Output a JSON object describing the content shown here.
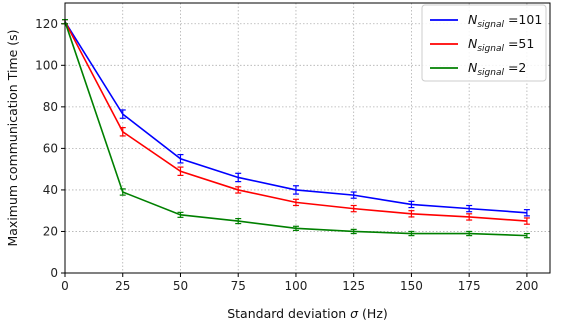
{
  "chart_data": {
    "type": "line",
    "xlabel_prefix": "Standard deviation ",
    "xlabel_symbol": "σ",
    "xlabel_suffix": " (Hz)",
    "ylabel": "Maximum communication Time (s)",
    "xlim": [
      0,
      210
    ],
    "ylim": [
      0,
      130
    ],
    "x_ticks": [
      0,
      25,
      50,
      75,
      100,
      125,
      150,
      175,
      200
    ],
    "y_ticks": [
      0,
      20,
      40,
      60,
      80,
      100,
      120
    ],
    "grid": true,
    "legend_position": "top-right",
    "x": [
      0,
      25,
      50,
      75,
      100,
      125,
      150,
      175,
      200
    ],
    "series": [
      {
        "symbol": "N",
        "subscript": "signal",
        "value_text": " =101",
        "color": "#0000ff",
        "values": [
          121,
          76.5,
          55,
          46,
          40,
          37.5,
          33,
          31,
          29
        ],
        "errors": [
          1,
          2,
          2,
          2,
          2,
          1.5,
          1.5,
          1.5,
          1.5
        ]
      },
      {
        "symbol": "N",
        "subscript": "signal",
        "value_text": " =51",
        "color": "#ff0000",
        "values": [
          121,
          68,
          49,
          40,
          34,
          31,
          28.5,
          27,
          25
        ],
        "errors": [
          1,
          2,
          2,
          1.5,
          1.5,
          1.5,
          1.5,
          1.5,
          1.5
        ]
      },
      {
        "symbol": "N",
        "subscript": "signal",
        "value_text": " =2",
        "color": "#008000",
        "values": [
          121,
          39,
          28,
          25,
          21.5,
          20,
          19,
          19,
          18
        ],
        "errors": [
          1,
          1.5,
          1.2,
          1.2,
          1,
          1,
          1,
          1,
          1
        ]
      }
    ]
  }
}
